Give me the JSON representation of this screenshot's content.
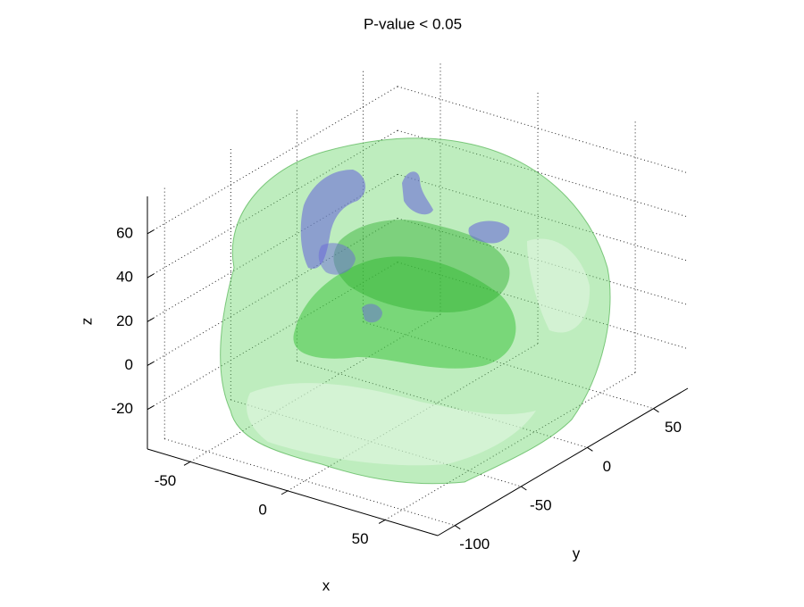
{
  "chart_data": {
    "type": "isosurface3d",
    "title": "P-value < 0.05",
    "xlabel": "x",
    "ylabel": "y",
    "zlabel": "z",
    "xlim": [
      -72,
      77
    ],
    "ylim": [
      -113,
      76
    ],
    "zlim": [
      -38,
      77
    ],
    "xticks": [
      -50,
      0,
      50
    ],
    "yticks": [
      -100,
      -50,
      0,
      50
    ],
    "zticks": [
      -20,
      0,
      20,
      40,
      60
    ],
    "grid": true
  }
}
